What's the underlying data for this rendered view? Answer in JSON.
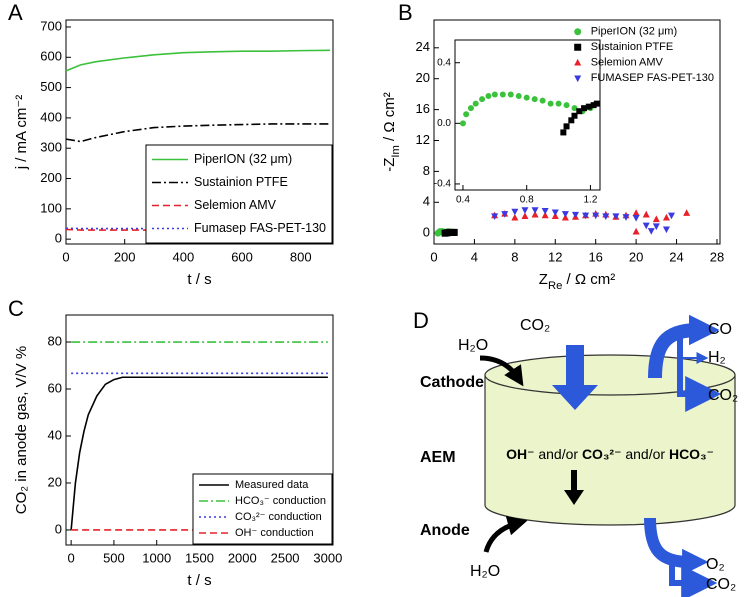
{
  "chart_data": [
    {
      "type": "line",
      "panel": "A",
      "x_label": "t / s",
      "y_label": "j / mA cm⁻²",
      "xlim": [
        0,
        910
      ],
      "ylim": [
        -16,
        723
      ],
      "xticks": [
        0,
        200,
        400,
        600,
        800
      ],
      "yticks": [
        0,
        100,
        200,
        300,
        400,
        500,
        600,
        700
      ],
      "legend": "lower right",
      "legend_frame": true,
      "series": [
        {
          "name": "PiperION (32 μm)",
          "color": "#3cc13c",
          "dash": "solid",
          "x": [
            0,
            50,
            100,
            200,
            300,
            400,
            500,
            600,
            700,
            800,
            900
          ],
          "values": [
            555,
            575,
            585,
            598,
            608,
            615,
            618,
            620,
            620,
            622,
            623
          ]
        },
        {
          "name": "Sustainion PTFE",
          "color": "#000000",
          "dash": "dashdot",
          "x": [
            0,
            50,
            100,
            200,
            300,
            400,
            500,
            600,
            700,
            800,
            900
          ],
          "values": [
            330,
            322,
            335,
            355,
            368,
            373,
            376,
            378,
            380,
            380,
            380
          ]
        },
        {
          "name": "Selemion AMV",
          "color": "#e8202a",
          "dash": "dashed",
          "x": [
            0,
            50,
            100,
            200,
            300,
            400,
            500,
            600,
            700,
            800,
            900
          ],
          "values": [
            32,
            30,
            30,
            30,
            30,
            30,
            30,
            30,
            30,
            30,
            30
          ]
        },
        {
          "name": "Fumasep FAS-PET-130",
          "color": "#3a3ae0",
          "dash": "dotted",
          "x": [
            0,
            50,
            100,
            200,
            300,
            400,
            500,
            600,
            700,
            800,
            900
          ],
          "values": [
            36,
            35,
            35,
            35,
            35,
            35,
            35,
            35,
            35,
            35,
            35
          ]
        }
      ]
    },
    {
      "type": "scatter",
      "panel": "B",
      "x_label": {
        "parts": [
          {
            "text": "Z"
          },
          {
            "text": "Re",
            "shift": "sub"
          },
          {
            "text": " / Ω cm²"
          }
        ]
      },
      "y_label": {
        "parts": [
          {
            "text": "-Z"
          },
          {
            "text": "Im",
            "shift": "sub"
          },
          {
            "text": " / Ω cm²"
          }
        ]
      },
      "xlim": [
        0,
        28.3
      ],
      "ylim": [
        -1.4,
        27.6
      ],
      "xticks": [
        0,
        4,
        8,
        12,
        16,
        20,
        24,
        28
      ],
      "yticks": [
        0,
        4,
        8,
        12,
        16,
        20,
        24
      ],
      "legend": "upper right",
      "legend_frame": false,
      "series": [
        {
          "name": "PiperION (32 μm)",
          "color": "#3cc13c",
          "marker": "circle",
          "x": [
            0.4,
            0.6,
            0.8,
            1.0,
            1.2,
            1.4
          ],
          "values": [
            0,
            0.2,
            0.2,
            0.15,
            0.1,
            0.2
          ]
        },
        {
          "name": "Sustainion PTFE",
          "color": "#000000",
          "marker": "square",
          "x": [
            1.1,
            1.3,
            1.5,
            1.7,
            1.9,
            2.0
          ],
          "values": [
            0,
            0.05,
            0.1,
            0.1,
            0.1,
            0.1
          ]
        },
        {
          "name": "Selemion AMV",
          "color": "#e8202a",
          "marker": "triangle",
          "x": [
            6,
            7,
            8,
            9,
            10,
            11,
            12,
            13,
            14,
            15,
            16,
            17,
            18,
            19,
            20,
            20,
            21,
            22,
            23,
            25
          ],
          "values": [
            2.3,
            2.5,
            2.0,
            2.2,
            2.4,
            2.3,
            2.2,
            2.0,
            2.1,
            2.3,
            2.5,
            2.4,
            2.1,
            2.3,
            2.6,
            0.2,
            2.4,
            1.8,
            2.0,
            2.6
          ]
        },
        {
          "name": "FUMASEP FAS-PET-130",
          "color": "#3a3ae0",
          "marker": "triangle-down",
          "x": [
            6,
            7,
            8,
            9,
            10,
            11,
            12,
            13,
            14,
            15,
            16,
            17,
            18,
            19,
            20,
            21,
            21.5,
            22,
            23,
            23.5
          ],
          "values": [
            2.2,
            2.5,
            2.8,
            3.0,
            3.0,
            2.9,
            2.7,
            2.5,
            2.4,
            2.3,
            2.3,
            2.2,
            2.2,
            2.1,
            2.0,
            1.0,
            0.3,
            0.9,
            0.5,
            2.3
          ]
        }
      ],
      "inset": {
        "xlim": [
          0.35,
          1.26
        ],
        "ylim": [
          -0.44,
          0.55
        ],
        "xticks": [
          0.4,
          0.8,
          1.2
        ],
        "yticks": [
          -0.4,
          {
            "value": 0,
            "label": "0.0"
          },
          0.4
        ],
        "series": [
          {
            "color": "#3cc13c",
            "marker": "circle",
            "x": [
              0.4,
              0.42,
              0.45,
              0.48,
              0.52,
              0.56,
              0.6,
              0.65,
              0.7,
              0.75,
              0.8,
              0.85,
              0.9,
              0.95,
              1.0,
              1.05,
              1.1,
              1.15,
              1.2
            ],
            "values": [
              0.0,
              0.06,
              0.1,
              0.13,
              0.16,
              0.18,
              0.19,
              0.19,
              0.19,
              0.18,
              0.17,
              0.16,
              0.15,
              0.13,
              0.13,
              0.12,
              0.1,
              0.08,
              0.1
            ]
          },
          {
            "color": "#000000",
            "marker": "square",
            "x": [
              1.03,
              1.05,
              1.08,
              1.1,
              1.13,
              1.16,
              1.19,
              1.22,
              1.24
            ],
            "values": [
              -0.06,
              -0.02,
              0.02,
              0.05,
              0.08,
              0.1,
              0.11,
              0.12,
              0.13
            ]
          }
        ]
      }
    },
    {
      "type": "line",
      "panel": "C",
      "x_label": "t / s",
      "y_label": "CO₂ in anode gas, V/V %",
      "xlim": [
        -60,
        3060
      ],
      "ylim": [
        -6.4,
        91.5
      ],
      "xticks": [
        0,
        500,
        1000,
        1500,
        2000,
        2500,
        3000
      ],
      "yticks": [
        0,
        20,
        40,
        60,
        80
      ],
      "legend": "lower right",
      "legend_frame": true,
      "series": [
        {
          "name": "Measured data",
          "color": "#000000",
          "dash": "solid",
          "x": [
            0,
            50,
            100,
            150,
            200,
            300,
            400,
            500,
            600,
            800,
            1000,
            1600,
            2000,
            3000
          ],
          "values": [
            0,
            20,
            33,
            42,
            49,
            57,
            62,
            64,
            65,
            65,
            65,
            65,
            65,
            65
          ]
        },
        {
          "name": "HCO₃⁻ conduction",
          "color": "#3cc13c",
          "dash": "dashdot",
          "x": [
            0,
            3000
          ],
          "values": [
            80,
            80
          ]
        },
        {
          "name": "CO₃²⁻ conduction",
          "color": "#3a3ae0",
          "dash": "dotted",
          "x": [
            0,
            3000
          ],
          "values": [
            66.7,
            66.7
          ]
        },
        {
          "name": "OH⁻ conduction",
          "color": "#e8202a",
          "dash": "dashed",
          "x": [
            0,
            3000
          ],
          "values": [
            0,
            0
          ]
        }
      ]
    }
  ],
  "diagram": {
    "panel": "D",
    "cathode": "Cathode",
    "aem": "AEM",
    "anode": "Anode",
    "cathode_h2o": "H₂O",
    "cathode_co2": "CO₂",
    "anode_h2o": "H₂O",
    "cathode_products": [
      "CO",
      "H₂",
      "CO₂"
    ],
    "anode_products": [
      "O₂",
      "CO₂"
    ],
    "membrane_text": [
      "OH⁻",
      " and/or ",
      "CO₃²⁻",
      " and/or ",
      "HCO₃⁻"
    ]
  }
}
